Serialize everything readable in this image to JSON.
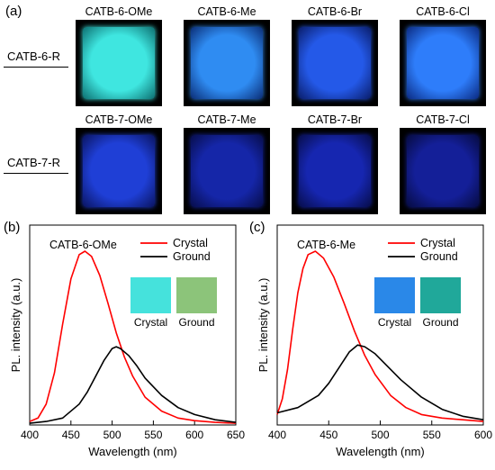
{
  "panel_a": {
    "letter": "(a)",
    "rows": [
      {
        "label": "CATB-6-R",
        "tiles": [
          {
            "title": "CATB-6-OMe",
            "color": "#3fe6e0",
            "edge": "#0d6f70"
          },
          {
            "title": "CATB-6-Me",
            "color": "#2f8cf2",
            "edge": "#0b2d75"
          },
          {
            "title": "CATB-6-Br",
            "color": "#2459e8",
            "edge": "#0a1d6a"
          },
          {
            "title": "CATB-6-Cl",
            "color": "#2e7dfa",
            "edge": "#0b2a80"
          }
        ]
      },
      {
        "label": "CATB-7-R",
        "tiles": [
          {
            "title": "CATB-7-OMe",
            "color": "#1f3fd6",
            "edge": "#0a1460"
          },
          {
            "title": "CATB-7-Me",
            "color": "#1526a8",
            "edge": "#070d4a"
          },
          {
            "title": "CATB-7-Br",
            "color": "#1626b0",
            "edge": "#070d4a"
          },
          {
            "title": "CATB-7-Cl",
            "color": "#141f98",
            "edge": "#060b40"
          }
        ]
      }
    ]
  },
  "chart_data": [
    {
      "panel": "(b)",
      "type": "line",
      "annotation": "CATB-6-OMe",
      "xlabel": "Wavelength (nm)",
      "ylabel": "PL. intensity (a.u.)",
      "xlim": [
        400,
        650
      ],
      "xticks": [
        400,
        450,
        500,
        550,
        600,
        650
      ],
      "ylim": [
        0,
        1.15
      ],
      "legend_position": "top-right",
      "inset": {
        "crystal_label": "Crystal",
        "ground_label": "Ground",
        "crystal_color": "#45e2dc",
        "ground_color": "#8cc47a"
      },
      "series": [
        {
          "name": "Crystal",
          "color": "#ff0000",
          "x": [
            400,
            410,
            420,
            430,
            440,
            450,
            460,
            467,
            475,
            485,
            495,
            505,
            515,
            525,
            540,
            560,
            580,
            600,
            625,
            650
          ],
          "y": [
            0.02,
            0.04,
            0.12,
            0.3,
            0.58,
            0.84,
            0.98,
            1.0,
            0.97,
            0.86,
            0.7,
            0.53,
            0.39,
            0.28,
            0.16,
            0.08,
            0.04,
            0.025,
            0.015,
            0.01
          ]
        },
        {
          "name": "Ground",
          "color": "#000000",
          "x": [
            400,
            420,
            440,
            460,
            470,
            480,
            490,
            500,
            505,
            510,
            520,
            530,
            540,
            560,
            580,
            600,
            625,
            650
          ],
          "y": [
            0.01,
            0.02,
            0.04,
            0.12,
            0.19,
            0.28,
            0.37,
            0.44,
            0.45,
            0.44,
            0.4,
            0.34,
            0.27,
            0.17,
            0.1,
            0.06,
            0.03,
            0.015
          ]
        }
      ]
    },
    {
      "panel": "(c)",
      "type": "line",
      "annotation": "CATB-6-Me",
      "xlabel": "Wavelength (nm)",
      "ylabel": "PL. intensity (a.u.)",
      "xlim": [
        400,
        600
      ],
      "xticks": [
        400,
        450,
        500,
        550,
        600
      ],
      "ylim": [
        0,
        1.15
      ],
      "legend_position": "top-right",
      "inset": {
        "crystal_label": "Crystal",
        "ground_label": "Ground",
        "crystal_color": "#2a88e8",
        "ground_color": "#20a89a"
      },
      "series": [
        {
          "name": "Crystal",
          "color": "#ff0000",
          "x": [
            400,
            405,
            410,
            415,
            420,
            425,
            430,
            437,
            445,
            455,
            465,
            475,
            485,
            495,
            510,
            525,
            540,
            560,
            580,
            600
          ],
          "y": [
            0.06,
            0.15,
            0.32,
            0.55,
            0.76,
            0.9,
            0.98,
            1.0,
            0.96,
            0.85,
            0.7,
            0.54,
            0.4,
            0.29,
            0.17,
            0.1,
            0.06,
            0.04,
            0.03,
            0.02
          ]
        },
        {
          "name": "Ground",
          "color": "#000000",
          "x": [
            400,
            420,
            440,
            450,
            460,
            470,
            478,
            485,
            495,
            505,
            520,
            540,
            560,
            580,
            600
          ],
          "y": [
            0.07,
            0.1,
            0.17,
            0.24,
            0.33,
            0.42,
            0.46,
            0.45,
            0.41,
            0.35,
            0.26,
            0.16,
            0.09,
            0.05,
            0.03
          ]
        }
      ]
    }
  ]
}
